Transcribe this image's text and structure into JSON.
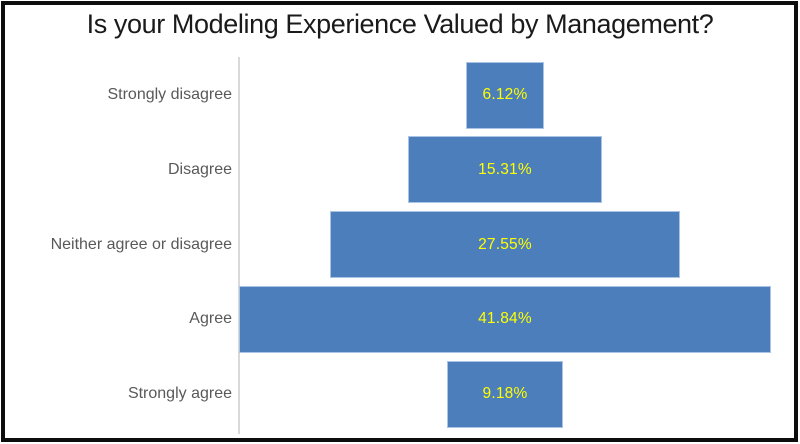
{
  "chart_data": {
    "type": "bar",
    "subtype": "centered-funnel",
    "orientation": "horizontal",
    "bar_alignment": "center",
    "title": "Is your Modeling Experience Valued by Management?",
    "categories": [
      "Strongly disagree",
      "Disagree",
      "Neither agree or disagree",
      "Agree",
      "Strongly agree"
    ],
    "values": [
      6.12,
      15.31,
      27.55,
      41.84,
      9.18
    ],
    "value_labels": [
      "6.12%",
      "15.31%",
      "27.55%",
      "41.84%",
      "9.18%"
    ],
    "value_label_position": "inside-center",
    "xlabel": "",
    "ylabel": "",
    "xlim": [
      0,
      44
    ],
    "grid": false,
    "legend": false,
    "colors": {
      "bar_fill": "#4c7ebc",
      "bar_border": "#a9c4e4",
      "value_label": "#ffff00",
      "category_label": "#595959",
      "axis_line": "#d9d9d9",
      "title_text": "#1a1a1a",
      "frame_border": "#0d0d0d",
      "background": "#ffffff"
    }
  }
}
